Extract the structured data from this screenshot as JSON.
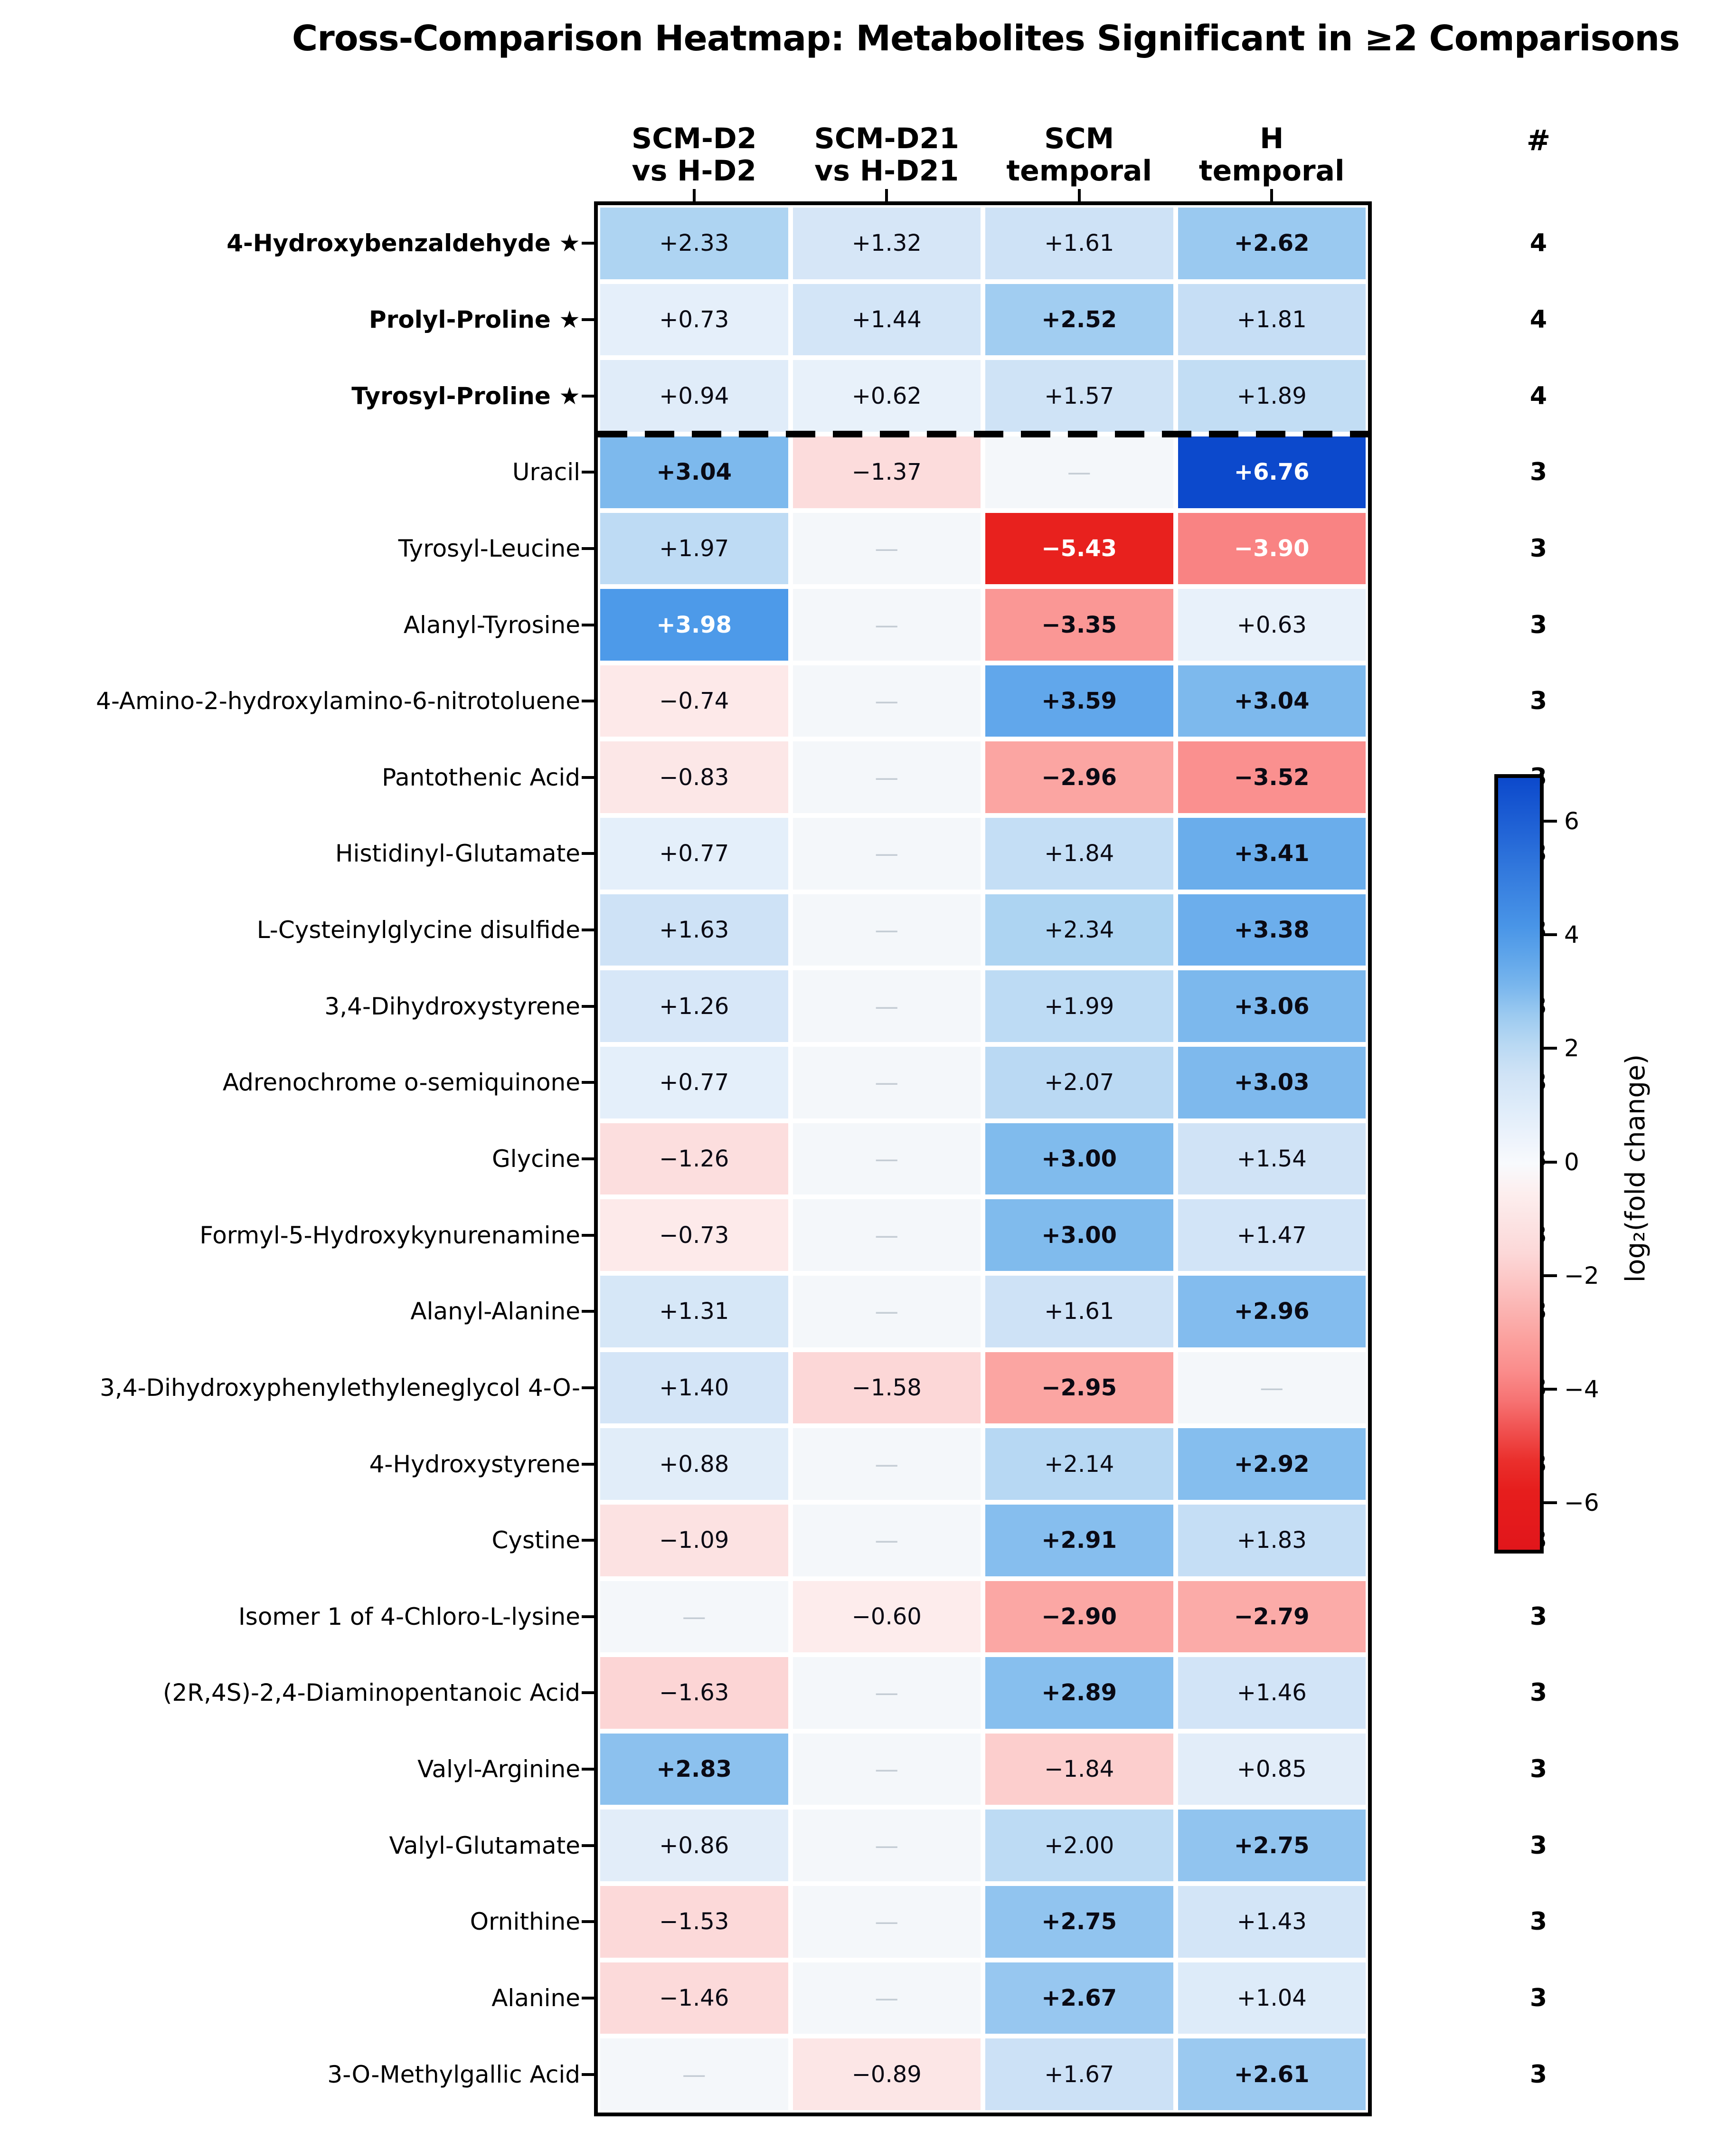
{
  "title": "Cross-Comparison Heatmap: Metabolites Significant in ≥2 Comparisons",
  "count_column_header": "#",
  "star_symbol": "★",
  "missing_marker": "—",
  "chart_data": {
    "type": "heatmap",
    "title": "Cross-Comparison Heatmap: Metabolites Significant in ≥2 Comparisons",
    "value_label": "log₂(fold change)",
    "columns": [
      {
        "key": "scm_d2_vs_h_d2",
        "label": "SCM-D2\nvs H-D2"
      },
      {
        "key": "scm_d21_vs_h_d21",
        "label": "SCM-D21\nvs H-D21"
      },
      {
        "key": "scm_temporal",
        "label": "SCM\ntemporal"
      },
      {
        "key": "h_temporal",
        "label": "H\ntemporal"
      }
    ],
    "count_column_header": "#",
    "separator_after_row": 3,
    "rows": [
      {
        "label": "4-Hydroxybenzaldehyde",
        "starred": true,
        "values": [
          2.33,
          1.32,
          1.61,
          2.62
        ],
        "count": 4
      },
      {
        "label": "Prolyl-Proline",
        "starred": true,
        "values": [
          0.73,
          1.44,
          2.52,
          1.81
        ],
        "count": 4
      },
      {
        "label": "Tyrosyl-Proline",
        "starred": true,
        "values": [
          0.94,
          0.62,
          1.57,
          1.89
        ],
        "count": 4
      },
      {
        "label": "Uracil",
        "starred": false,
        "values": [
          3.04,
          -1.37,
          null,
          6.76
        ],
        "count": 3
      },
      {
        "label": "Tyrosyl-Leucine",
        "starred": false,
        "values": [
          1.97,
          null,
          -5.43,
          -3.9
        ],
        "count": 3
      },
      {
        "label": "Alanyl-Tyrosine",
        "starred": false,
        "values": [
          3.98,
          null,
          -3.35,
          0.63
        ],
        "count": 3
      },
      {
        "label": "4-Amino-2-hydroxylamino-6-nitrotoluene",
        "starred": false,
        "values": [
          -0.74,
          null,
          3.59,
          3.04
        ],
        "count": 3
      },
      {
        "label": "Pantothenic Acid",
        "starred": false,
        "values": [
          -0.83,
          null,
          -2.96,
          -3.52
        ],
        "count": 3
      },
      {
        "label": "Histidinyl-Glutamate",
        "starred": false,
        "values": [
          0.77,
          null,
          1.84,
          3.41
        ],
        "count": 3
      },
      {
        "label": "L-Cysteinylglycine disulfide",
        "starred": false,
        "values": [
          1.63,
          null,
          2.34,
          3.38
        ],
        "count": 3
      },
      {
        "label": "3,4-Dihydroxystyrene",
        "starred": false,
        "values": [
          1.26,
          null,
          1.99,
          3.06
        ],
        "count": 3
      },
      {
        "label": "Adrenochrome o-semiquinone",
        "starred": false,
        "values": [
          0.77,
          null,
          2.07,
          3.03
        ],
        "count": 3
      },
      {
        "label": "Glycine",
        "starred": false,
        "values": [
          -1.26,
          null,
          3.0,
          1.54
        ],
        "count": 3
      },
      {
        "label": "Formyl-5-Hydroxykynurenamine",
        "starred": false,
        "values": [
          -0.73,
          null,
          3.0,
          1.47
        ],
        "count": 3
      },
      {
        "label": "Alanyl-Alanine",
        "starred": false,
        "values": [
          1.31,
          null,
          1.61,
          2.96
        ],
        "count": 3
      },
      {
        "label": "3,4-Dihydroxyphenylethyleneglycol 4-O-",
        "starred": false,
        "values": [
          1.4,
          -1.58,
          -2.95,
          null
        ],
        "count": 3
      },
      {
        "label": "4-Hydroxystyrene",
        "starred": false,
        "values": [
          0.88,
          null,
          2.14,
          2.92
        ],
        "count": 3
      },
      {
        "label": "Cystine",
        "starred": false,
        "values": [
          -1.09,
          null,
          2.91,
          1.83
        ],
        "count": 3
      },
      {
        "label": "Isomer 1 of 4-Chloro-L-lysine",
        "starred": false,
        "values": [
          null,
          -0.6,
          -2.9,
          -2.79
        ],
        "count": 3
      },
      {
        "label": "(2R,4S)-2,4-Diaminopentanoic Acid",
        "starred": false,
        "values": [
          -1.63,
          null,
          2.89,
          1.46
        ],
        "count": 3
      },
      {
        "label": "Valyl-Arginine",
        "starred": false,
        "values": [
          2.83,
          null,
          -1.84,
          0.85
        ],
        "count": 3
      },
      {
        "label": "Valyl-Glutamate",
        "starred": false,
        "values": [
          0.86,
          null,
          2.0,
          2.75
        ],
        "count": 3
      },
      {
        "label": "Ornithine",
        "starred": false,
        "values": [
          -1.53,
          null,
          2.75,
          1.43
        ],
        "count": 3
      },
      {
        "label": "Alanine",
        "starred": false,
        "values": [
          -1.46,
          null,
          2.67,
          1.04
        ],
        "count": 3
      },
      {
        "label": "3-O-Methylgallic Acid",
        "starred": false,
        "values": [
          null,
          -0.89,
          1.67,
          2.61
        ],
        "count": 3
      }
    ],
    "colorbar": {
      "label": "log₂(fold change)",
      "tick_values": [
        6,
        4,
        2,
        0,
        -2,
        -4,
        -6
      ],
      "tick_labels": [
        "6",
        "4",
        "2",
        "0",
        "−2",
        "−4",
        "−6"
      ],
      "vmin": -6.76,
      "vmax": 6.76,
      "legend_position": "right"
    },
    "style": {
      "bold_abs_threshold": 2.5,
      "white_text_abs_threshold": 3.8,
      "missing_cell_bg": "#f4f7fa",
      "missing_dash_color": "#c4ccd4",
      "grid_gap_color": "#ffffff",
      "border_color": "#000000",
      "colormap_positive": [
        [
          0,
          "#f8fafd"
        ],
        [
          0.24,
          "#cee2f6"
        ],
        [
          0.345,
          "#aed4f2"
        ],
        [
          0.45,
          "#7db9ed"
        ],
        [
          0.59,
          "#4d9ae9"
        ],
        [
          1,
          "#0c49cc"
        ]
      ],
      "colormap_negative": [
        [
          0,
          "#fdf9f9"
        ],
        [
          0.23,
          "#fcd8d8"
        ],
        [
          0.44,
          "#fba4a1"
        ],
        [
          0.58,
          "#f98282"
        ],
        [
          0.8,
          "#e8211e"
        ],
        [
          1,
          "#e1161b"
        ]
      ]
    }
  }
}
